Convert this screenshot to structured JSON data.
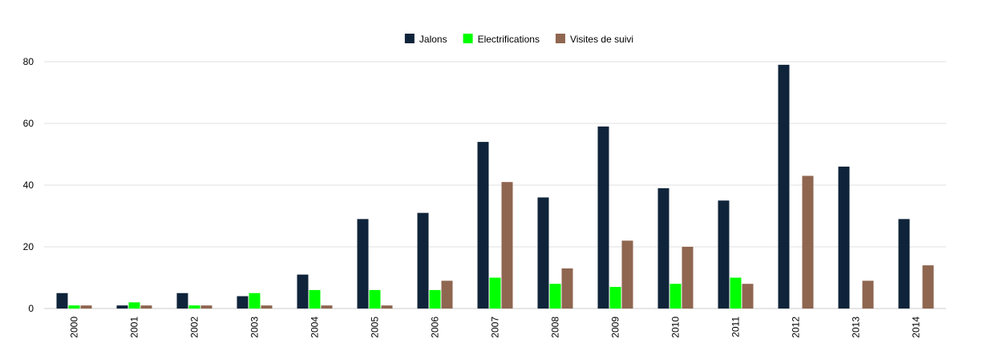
{
  "chart_data": {
    "type": "bar",
    "categories": [
      "2000",
      "2001",
      "2002",
      "2003",
      "2004",
      "2005",
      "2006",
      "2007",
      "2008",
      "2009",
      "2010",
      "2011",
      "2012",
      "2013",
      "2014"
    ],
    "series": [
      {
        "name": "Jalons",
        "color": "#0f243a",
        "values": [
          5,
          1,
          5,
          4,
          11,
          29,
          31,
          54,
          36,
          59,
          39,
          35,
          79,
          46,
          29
        ]
      },
      {
        "name": "Electrifications",
        "color": "#00ff00",
        "values": [
          1,
          2,
          1,
          5,
          6,
          6,
          6,
          10,
          8,
          7,
          8,
          10,
          0,
          0,
          0
        ]
      },
      {
        "name": "Visites de suivi",
        "color": "#8f6650",
        "values": [
          1,
          1,
          1,
          1,
          1,
          1,
          9,
          41,
          13,
          22,
          20,
          8,
          43,
          9,
          14
        ]
      }
    ],
    "ylim": [
      0,
      80
    ],
    "yticks": [
      0,
      20,
      40,
      60,
      80
    ],
    "grid": true,
    "legend_position": "top-center",
    "title": "",
    "xlabel": "",
    "ylabel": ""
  }
}
